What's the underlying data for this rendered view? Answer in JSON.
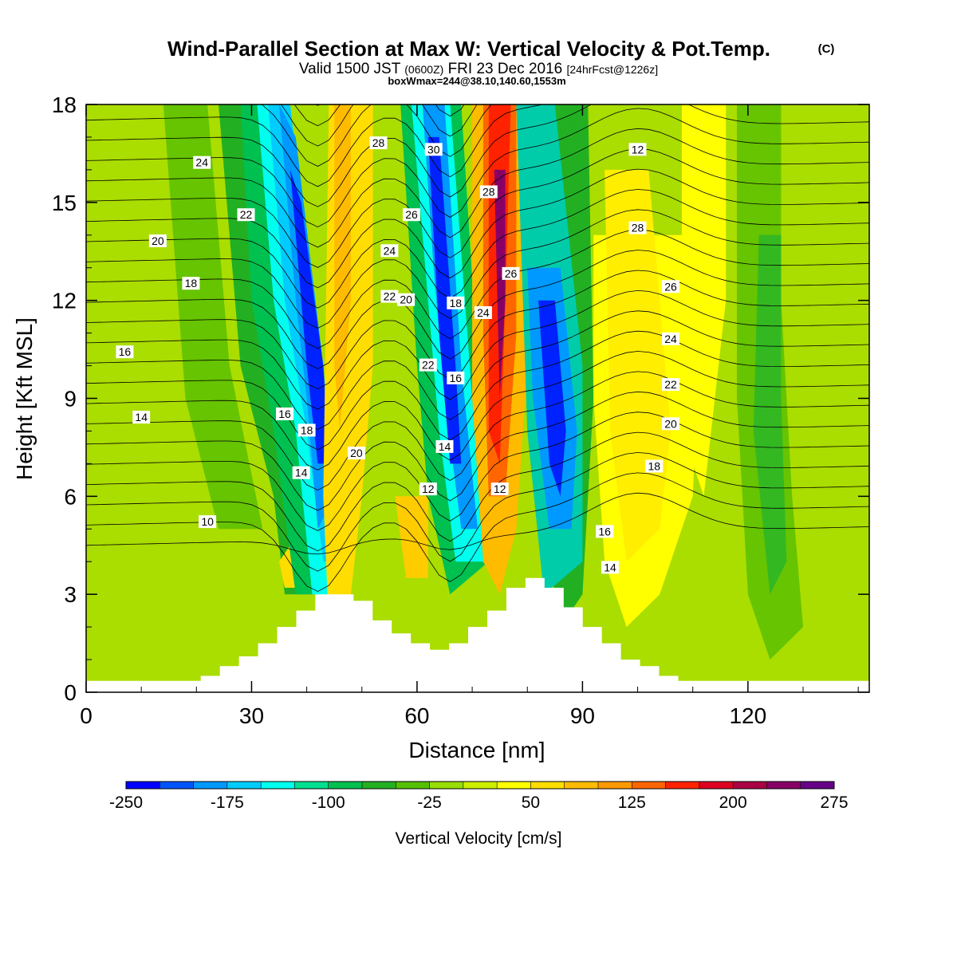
{
  "chart_data": {
    "type": "heatmap",
    "title": "Wind-Parallel Section at Max W: Vertical Velocity & Pot.Temp.",
    "title_mark": "(C)",
    "subtitle_main": "Valid 1500 JST",
    "subtitle_utc": "(0600Z)",
    "subtitle_date": "FRI 23 Dec 2016",
    "subtitle_fcst": "[24hrFcst@1226z]",
    "subtitle2": "boxWmax=244@38.10,140.60,1553m",
    "xlabel": "Distance [nm]",
    "ylabel": "Height [Kft MSL]",
    "xlim": [
      0,
      142
    ],
    "ylim": [
      0,
      18
    ],
    "xticks": [
      "0",
      "30",
      "60",
      "90",
      "120"
    ],
    "yticks": [
      "0",
      "3",
      "6",
      "9",
      "12",
      "15",
      "18"
    ],
    "colorbar": {
      "label": "Vertical Velocity [cm/s]",
      "tick_labels": [
        "-250",
        "-175",
        "-100",
        "-25",
        "50",
        "125",
        "200",
        "275"
      ],
      "colors": [
        "#0000ff",
        "#0055ff",
        "#0099ff",
        "#00ccff",
        "#00ffee",
        "#00e090",
        "#00c050",
        "#22b022",
        "#55c000",
        "#99dd00",
        "#ccee00",
        "#ffff00",
        "#ffdd00",
        "#ffbb00",
        "#ff9900",
        "#ff6600",
        "#ff2200",
        "#dd0022",
        "#aa0044",
        "#880066",
        "#660088"
      ]
    },
    "contour_labels": [
      "24",
      "22",
      "20",
      "18",
      "16",
      "14",
      "10",
      "28",
      "30",
      "26",
      "24",
      "22",
      "20",
      "18",
      "16",
      "14",
      "12",
      "28",
      "26",
      "24",
      "22",
      "20",
      "18",
      "16",
      "14",
      "12",
      "28",
      "26",
      "24",
      "22",
      "20",
      "18",
      "16",
      "14",
      "12"
    ],
    "terrain_kft": [
      0,
      0,
      0,
      0,
      0,
      0.3,
      0.5,
      0.8,
      1.1,
      1.5,
      2.0,
      2.5,
      3.0,
      3.0,
      2.8,
      2.2,
      1.8,
      1.5,
      1.3,
      1.5,
      2.0,
      2.5,
      3.2,
      3.5,
      3.2,
      2.6,
      2.0,
      1.5,
      1.0,
      0.8,
      0.5,
      0.3,
      0.2,
      0.1,
      0,
      0,
      0,
      0,
      0,
      0,
      0
    ]
  }
}
